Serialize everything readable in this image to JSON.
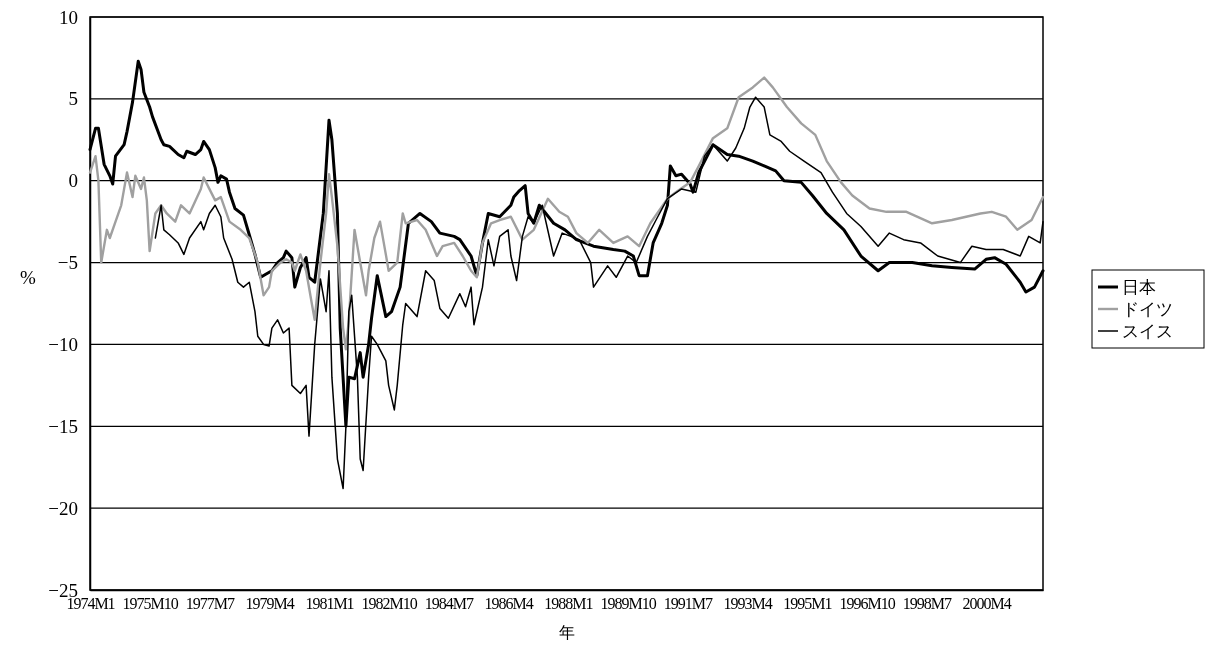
{
  "chart_data": {
    "type": "line",
    "xlabel": "年",
    "ylabel": "%",
    "xlim": [
      "1974-01",
      "2001-12"
    ],
    "ylim": [
      -25,
      10
    ],
    "xticks": [
      {
        "value": "1974-01",
        "label": "1974M1"
      },
      {
        "value": "1975-10",
        "label": "1975M10"
      },
      {
        "value": "1977-07",
        "label": "1977M7"
      },
      {
        "value": "1979-04",
        "label": "1979M4"
      },
      {
        "value": "1981-01",
        "label": "1981M1"
      },
      {
        "value": "1982-10",
        "label": "1982M10"
      },
      {
        "value": "1984-07",
        "label": "1984M7"
      },
      {
        "value": "1986-04",
        "label": "1986M4"
      },
      {
        "value": "1988-01",
        "label": "1988M1"
      },
      {
        "value": "1989-10",
        "label": "1989M10"
      },
      {
        "value": "1991-07",
        "label": "1991M7"
      },
      {
        "value": "1993-04",
        "label": "1993M4"
      },
      {
        "value": "1995-01",
        "label": "1995M1"
      },
      {
        "value": "1996-10",
        "label": "1996M10"
      },
      {
        "value": "1998-07",
        "label": "1998M7"
      },
      {
        "value": "2000-04",
        "label": "2000M4"
      }
    ],
    "yticks": [
      10,
      5,
      0,
      {
        "value": -5,
        "label": "−5"
      },
      {
        "value": -10,
        "label": "−10"
      },
      {
        "value": -15,
        "label": "−15"
      },
      {
        "value": -20,
        "label": "−20"
      },
      {
        "value": -25,
        "label": "−25"
      }
    ],
    "grid": "y",
    "legend": "right",
    "marker": "none",
    "line_style": "solid",
    "series": [
      {
        "name": "日本",
        "color": "#000000",
        "x": [
          "1974-01",
          "1974-03",
          "1974-04",
          "1974-06",
          "1974-08",
          "1974-09",
          "1974-10",
          "1975-01",
          "1975-02",
          "1975-04",
          "1975-06",
          "1975-07",
          "1975-08",
          "1975-10",
          "1975-11",
          "1976-02",
          "1976-03",
          "1976-05",
          "1976-08",
          "1976-10",
          "1976-11",
          "1977-02",
          "1977-04",
          "1977-05",
          "1977-07",
          "1977-09",
          "1977-10",
          "1977-11",
          "1978-01",
          "1978-02",
          "1978-04",
          "1978-07",
          "1978-09",
          "1978-11",
          "1979-01",
          "1979-03",
          "1979-05",
          "1979-07",
          "1979-09",
          "1979-10",
          "1979-12",
          "1980-01",
          "1980-03",
          "1980-05",
          "1980-06",
          "1980-08",
          "1980-11",
          "1981-01",
          "1981-02",
          "1981-04",
          "1981-05",
          "1981-07",
          "1981-08",
          "1981-10",
          "1981-12",
          "1982-01",
          "1982-03",
          "1982-04",
          "1982-06",
          "1982-09",
          "1982-11",
          "1983-02",
          "1983-05",
          "1983-09",
          "1984-01",
          "1984-04",
          "1984-09",
          "1984-11",
          "1985-03",
          "1985-05",
          "1985-07",
          "1985-09",
          "1986-01",
          "1986-05",
          "1986-06",
          "1986-08",
          "1986-10",
          "1986-11",
          "1987-01",
          "1987-03",
          "1987-08",
          "1987-12",
          "1988-04",
          "1988-10",
          "1989-05",
          "1989-09",
          "1989-12",
          "1990-02",
          "1990-05",
          "1990-07",
          "1990-10",
          "1990-12",
          "1991-01",
          "1991-03",
          "1991-05",
          "1991-08",
          "1991-09",
          "1991-11",
          "1992-04",
          "1992-09",
          "1993-01",
          "1993-06",
          "1993-10",
          "1994-02",
          "1994-05",
          "1994-11",
          "1995-03",
          "1995-08",
          "1996-02",
          "1996-08",
          "1997-02",
          "1997-06",
          "1998-02",
          "1998-09",
          "1999-04",
          "1999-12",
          "2000-04",
          "2000-07",
          "2000-11",
          "2001-04",
          "2001-06",
          "2001-09",
          "2001-12"
        ],
        "values": [
          1.9,
          3.2,
          3.2,
          1.0,
          0.3,
          -0.2,
          1.5,
          2.2,
          3.0,
          4.8,
          7.3,
          6.8,
          5.4,
          4.5,
          3.9,
          2.5,
          2.2,
          2.1,
          1.6,
          1.4,
          1.8,
          1.6,
          1.9,
          2.4,
          1.9,
          0.8,
          -0.1,
          0.3,
          0.1,
          -0.7,
          -1.7,
          -2.1,
          -3.3,
          -4.5,
          -5.9,
          -5.7,
          -5.5,
          -5.0,
          -4.7,
          -4.3,
          -4.7,
          -6.5,
          -5.3,
          -4.7,
          -5.9,
          -6.2,
          -2.0,
          3.7,
          2.5,
          -2.0,
          -9.0,
          -15.0,
          -12.0,
          -12.1,
          -10.5,
          -12.0,
          -10.0,
          -8.4,
          -5.8,
          -8.3,
          -8.0,
          -6.5,
          -2.6,
          -2.0,
          -2.5,
          -3.2,
          -3.4,
          -3.6,
          -4.6,
          -5.8,
          -3.8,
          -2.0,
          -2.2,
          -1.5,
          -1.0,
          -0.6,
          -0.3,
          -2.0,
          -2.6,
          -1.5,
          -2.6,
          -3.0,
          -3.6,
          -4.0,
          -4.2,
          -4.3,
          -4.6,
          -5.8,
          -5.8,
          -3.8,
          -2.6,
          -1.5,
          0.9,
          0.3,
          0.4,
          -0.2,
          -0.7,
          0.5,
          2.2,
          1.6,
          1.5,
          1.2,
          0.9,
          0.6,
          0.0,
          -0.1,
          -0.9,
          -2.0,
          -3.0,
          -4.6,
          -5.5,
          -5.0,
          -5.0,
          -5.2,
          -5.3,
          -5.4,
          -4.8,
          -4.7,
          -5.1,
          -6.2,
          -6.8,
          -6.5,
          -5.5
        ]
      },
      {
        "name": "ドイツ",
        "color": "#a0a0a0",
        "x": [
          "1974-01",
          "1974-03",
          "1974-04",
          "1974-05",
          "1974-07",
          "1974-08",
          "1974-10",
          "1974-12",
          "1975-01",
          "1975-02",
          "1975-04",
          "1975-05",
          "1975-07",
          "1975-08",
          "1975-09",
          "1975-10",
          "1975-12",
          "1976-02",
          "1976-04",
          "1976-07",
          "1976-09",
          "1976-12",
          "1977-04",
          "1977-05",
          "1977-07",
          "1977-09",
          "1977-11",
          "1978-02",
          "1978-06",
          "1978-09",
          "1978-12",
          "1979-02",
          "1979-04",
          "1979-05",
          "1979-08",
          "1979-10",
          "1979-12",
          "1980-01",
          "1980-03",
          "1980-05",
          "1980-07",
          "1980-08",
          "1980-10",
          "1980-12",
          "1981-01",
          "1981-02",
          "1981-04",
          "1981-06",
          "1981-07",
          "1981-08",
          "1981-10",
          "1981-12",
          "1982-02",
          "1982-03",
          "1982-05",
          "1982-07",
          "1982-09",
          "1982-10",
          "1983-01",
          "1983-03",
          "1983-04",
          "1983-08",
          "1983-11",
          "1984-03",
          "1984-05",
          "1984-09",
          "1984-12",
          "1985-03",
          "1985-05",
          "1985-07",
          "1985-10",
          "1986-01",
          "1986-05",
          "1986-09",
          "1987-01",
          "1987-06",
          "1987-10",
          "1988-01",
          "1988-04",
          "1988-08",
          "1988-12",
          "1989-05",
          "1989-10",
          "1990-02",
          "1990-06",
          "1990-12",
          "1991-03",
          "1991-08",
          "1991-11",
          "1992-04",
          "1992-09",
          "1993-01",
          "1993-06",
          "1993-10",
          "1994-01",
          "1994-06",
          "1994-11",
          "1995-04",
          "1995-08",
          "1996-01",
          "1996-05",
          "1996-11",
          "1997-05",
          "1997-12",
          "1998-09",
          "1999-04",
          "2000-02",
          "2000-06",
          "2000-11",
          "2001-03",
          "2001-08",
          "2001-12"
        ],
        "values": [
          0.5,
          1.5,
          0.0,
          -5.0,
          -3.0,
          -3.5,
          -2.5,
          -1.5,
          -0.5,
          0.5,
          -1.0,
          0.3,
          -0.5,
          0.2,
          -1.2,
          -4.3,
          -2.0,
          -1.5,
          -2.0,
          -2.5,
          -1.5,
          -2.0,
          -0.5,
          0.2,
          -0.5,
          -1.2,
          -1.0,
          -2.5,
          -3.0,
          -3.5,
          -5.0,
          -7.0,
          -6.5,
          -5.5,
          -5.0,
          -4.8,
          -5.0,
          -5.5,
          -4.5,
          -5.5,
          -7.5,
          -8.5,
          -5.0,
          -2.0,
          0.4,
          -1.0,
          -4.0,
          -9.0,
          -10.3,
          -8.5,
          -3.0,
          -5.0,
          -7.0,
          -5.5,
          -3.5,
          -2.5,
          -4.5,
          -5.5,
          -5.0,
          -2.0,
          -2.6,
          -2.4,
          -3.0,
          -4.6,
          -4.0,
          -3.8,
          -4.6,
          -5.5,
          -5.9,
          -3.8,
          -2.6,
          -2.4,
          -2.2,
          -3.6,
          -3.0,
          -1.1,
          -1.9,
          -2.2,
          -3.2,
          -3.8,
          -3.0,
          -3.8,
          -3.4,
          -4.0,
          -2.6,
          -1.1,
          -0.7,
          -0.1,
          0.9,
          2.6,
          3.2,
          5.1,
          5.7,
          6.3,
          5.7,
          4.5,
          3.5,
          2.8,
          1.2,
          -0.1,
          -0.9,
          -1.7,
          -1.9,
          -1.9,
          -2.6,
          -2.4,
          -2.0,
          -1.9,
          -2.2,
          -3.0,
          -2.4,
          -1.0
        ]
      },
      {
        "name": "スイス",
        "color": "#000000",
        "x": [
          "1975-12",
          "1976-02",
          "1976-03",
          "1976-05",
          "1976-08",
          "1976-10",
          "1976-12",
          "1977-04",
          "1977-05",
          "1977-07",
          "1977-09",
          "1977-11",
          "1977-12",
          "1978-03",
          "1978-05",
          "1978-07",
          "1978-09",
          "1978-11",
          "1978-12",
          "1979-02",
          "1979-04",
          "1979-05",
          "1979-07",
          "1979-09",
          "1979-11",
          "1979-12",
          "1980-03",
          "1980-05",
          "1980-06",
          "1980-08",
          "1980-10",
          "1980-12",
          "1981-01",
          "1981-02",
          "1981-04",
          "1981-06",
          "1981-07",
          "1981-08",
          "1981-09",
          "1981-11",
          "1981-12",
          "1982-01",
          "1982-03",
          "1982-04",
          "1982-06",
          "1982-09",
          "1982-10",
          "1982-12",
          "1983-01",
          "1983-03",
          "1983-04",
          "1983-08",
          "1983-11",
          "1984-02",
          "1984-04",
          "1984-07",
          "1984-11",
          "1985-01",
          "1985-03",
          "1985-04",
          "1985-07",
          "1985-09",
          "1985-11",
          "1986-01",
          "1986-04",
          "1986-05",
          "1986-07",
          "1986-09",
          "1986-11",
          "1987-01",
          "1987-04",
          "1987-08",
          "1987-11",
          "1988-02",
          "1988-05",
          "1988-09",
          "1988-10",
          "1989-03",
          "1989-06",
          "1989-10",
          "1990-01",
          "1990-05",
          "1990-08",
          "1990-12",
          "1991-05",
          "1991-10",
          "1992-01",
          "1992-04",
          "1992-09",
          "1992-12",
          "1993-03",
          "1993-05",
          "1993-07",
          "1993-10",
          "1993-12",
          "1994-04",
          "1994-07",
          "1994-12",
          "1995-06",
          "1995-10",
          "1996-03",
          "1996-08",
          "1997-02",
          "1997-06",
          "1997-11",
          "1998-05",
          "1998-11",
          "1999-07",
          "1999-11",
          "2000-04",
          "2000-10",
          "2001-04",
          "2001-07",
          "2001-11",
          "2001-12"
        ],
        "values": [
          -3.5,
          -1.5,
          -3.0,
          -3.3,
          -3.8,
          -4.5,
          -3.5,
          -2.5,
          -3.0,
          -2.0,
          -1.5,
          -2.2,
          -3.5,
          -4.8,
          -6.2,
          -6.5,
          -6.2,
          -8.0,
          -9.5,
          -10.0,
          -10.1,
          -9.0,
          -8.5,
          -9.3,
          -9.0,
          -12.5,
          -13.0,
          -12.5,
          -15.6,
          -10.0,
          -6.0,
          -8.0,
          -5.5,
          -12.0,
          -17.0,
          -18.8,
          -15.0,
          -8.0,
          -7.0,
          -12.0,
          -17.0,
          -17.7,
          -12.0,
          -9.5,
          -10.0,
          -11.0,
          -12.5,
          -14.0,
          -12.5,
          -8.8,
          -7.5,
          -8.3,
          -5.5,
          -6.1,
          -7.8,
          -8.4,
          -6.9,
          -7.7,
          -6.5,
          -8.8,
          -6.5,
          -3.6,
          -5.2,
          -3.4,
          -3.0,
          -4.6,
          -6.1,
          -3.4,
          -2.2,
          -2.6,
          -1.5,
          -4.6,
          -3.2,
          -3.4,
          -3.6,
          -5.0,
          -6.5,
          -5.2,
          -5.9,
          -4.6,
          -5.0,
          -3.4,
          -2.4,
          -1.1,
          -0.5,
          -0.7,
          1.5,
          2.2,
          1.2,
          2.0,
          3.2,
          4.5,
          5.1,
          4.5,
          2.8,
          2.4,
          1.8,
          1.2,
          0.5,
          -0.7,
          -2.0,
          -2.8,
          -4.0,
          -3.2,
          -3.6,
          -3.8,
          -4.6,
          -5.0,
          -4.0,
          -4.2,
          -4.2,
          -4.6,
          -3.4,
          -3.8,
          -2.5
        ]
      }
    ]
  }
}
